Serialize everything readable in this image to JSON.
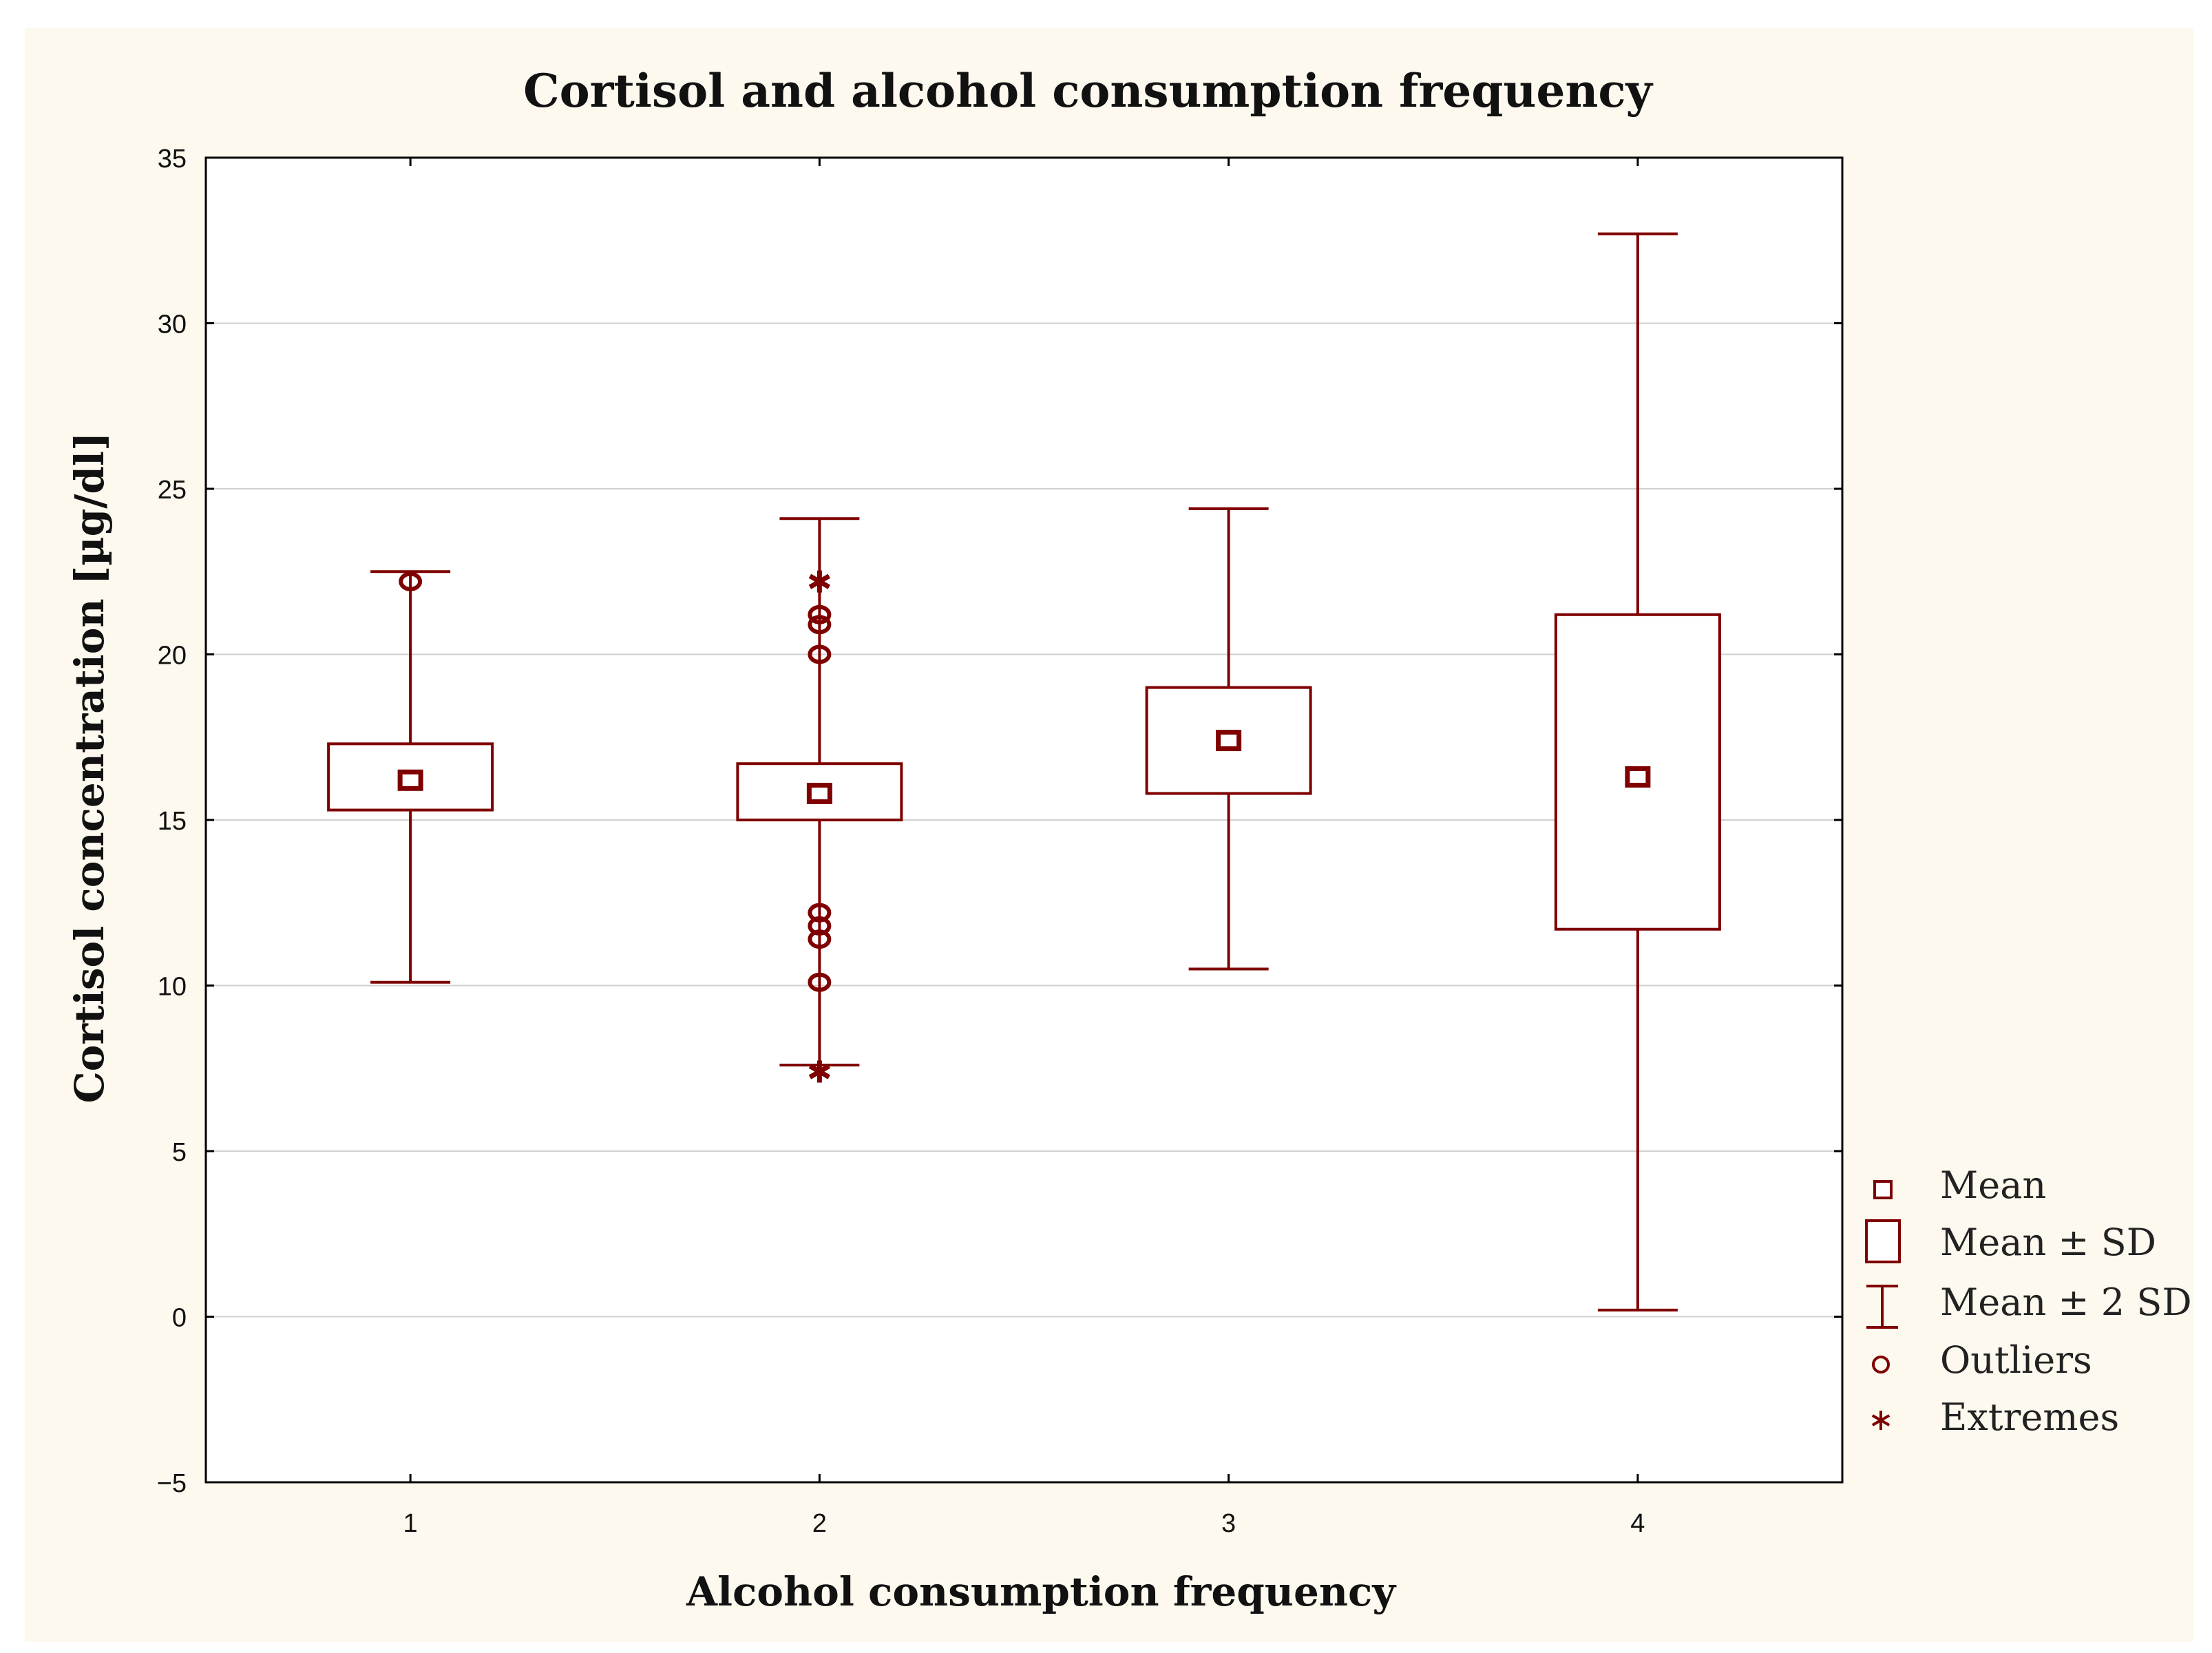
{
  "chart_data": {
    "type": "box",
    "title": "Cortisol and alcohol consumption frequency",
    "xlabel": "Alcohol consumption frequency",
    "ylabel": "Cortisol concentration [µg/dl]",
    "ylim": [
      -5,
      35
    ],
    "yticks": [
      -5,
      0,
      5,
      10,
      15,
      20,
      25,
      30,
      35
    ],
    "ytick_labels": [
      "−5",
      "0",
      "5",
      "10",
      "15",
      "20",
      "25",
      "30",
      "35"
    ],
    "categories": [
      "1",
      "2",
      "3",
      "4"
    ],
    "grid": true,
    "legend_position": "right-bottom",
    "color": "#7f0000",
    "groups": [
      {
        "category": "1",
        "mean": 16.2,
        "sd_low": 15.3,
        "sd_high": 17.3,
        "sd2_low": 10.1,
        "sd2_high": 22.5,
        "outliers": [
          22.2
        ],
        "extremes": []
      },
      {
        "category": "2",
        "mean": 15.8,
        "sd_low": 15.0,
        "sd_high": 16.7,
        "sd2_low": 7.6,
        "sd2_high": 24.1,
        "outliers": [
          21.2,
          20.9,
          20.0,
          12.2,
          11.8,
          11.4,
          10.1
        ],
        "extremes": [
          22.2,
          7.4
        ]
      },
      {
        "category": "3",
        "mean": 17.4,
        "sd_low": 15.8,
        "sd_high": 19.0,
        "sd2_low": 10.5,
        "sd2_high": 24.4,
        "outliers": [],
        "extremes": []
      },
      {
        "category": "4",
        "mean": 16.3,
        "sd_low": 11.7,
        "sd_high": 21.2,
        "sd2_low": 0.2,
        "sd2_high": 32.7,
        "outliers": [],
        "extremes": []
      }
    ],
    "legend": [
      {
        "symbol": "mean",
        "label": "Mean"
      },
      {
        "symbol": "box",
        "label": "Mean ± SD"
      },
      {
        "symbol": "whisker",
        "label": "Mean ± 2 SD"
      },
      {
        "symbol": "outlier",
        "label": "Outliers"
      },
      {
        "symbol": "extreme",
        "label": "Extremes"
      }
    ]
  }
}
